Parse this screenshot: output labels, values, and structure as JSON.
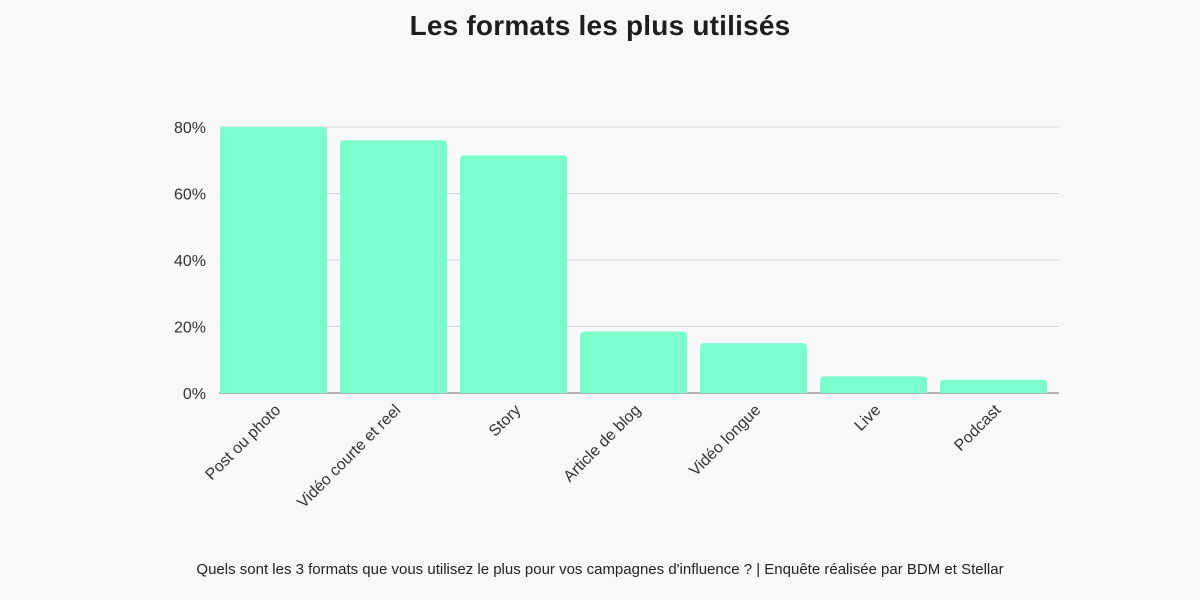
{
  "chart_data": {
    "type": "bar",
    "title": "Les formats les plus utilisés",
    "categories": [
      "Post ou photo",
      "Vidéo courte et reel",
      "Story",
      "Article de blog",
      "Vidéo longue",
      "Live",
      "Podcast"
    ],
    "values": [
      80,
      76,
      71.5,
      18.5,
      15,
      5,
      4
    ],
    "ylim": [
      0,
      80
    ],
    "yticks": [
      "0%",
      "20%",
      "40%",
      "60%",
      "80%"
    ],
    "ytick_values": [
      0,
      20,
      40,
      60,
      80
    ],
    "grid": true,
    "bar_color": "#7bffcd",
    "footnote": "Quels sont les 3 formats que vous utilisez le plus pour vos campagnes d'influence ? | Enquête réalisée par BDM et Stellar"
  }
}
